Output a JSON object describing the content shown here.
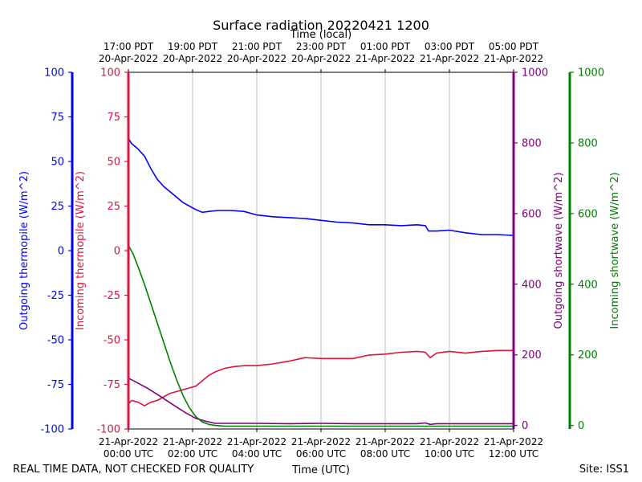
{
  "chart_data": {
    "type": "line",
    "title": "Surface radiation 20220421 1200",
    "top_xlabel": "Time (local)",
    "bottom_xlabel": "Time (UTC)",
    "footer_left": "REAL TIME DATA, NOT CHECKED FOR QUALITY",
    "footer_right": "Site: ISS1",
    "x_range_hours_utc": [
      0,
      12
    ],
    "grid": "vertical",
    "bottom_ticks": [
      {
        "h": 0,
        "l1": "21-Apr-2022",
        "l2": "00:00 UTC"
      },
      {
        "h": 2,
        "l1": "21-Apr-2022",
        "l2": "02:00 UTC"
      },
      {
        "h": 4,
        "l1": "21-Apr-2022",
        "l2": "04:00 UTC"
      },
      {
        "h": 6,
        "l1": "21-Apr-2022",
        "l2": "06:00 UTC"
      },
      {
        "h": 8,
        "l1": "21-Apr-2022",
        "l2": "08:00 UTC"
      },
      {
        "h": 10,
        "l1": "21-Apr-2022",
        "l2": "10:00 UTC"
      },
      {
        "h": 12,
        "l1": "21-Apr-2022",
        "l2": "12:00 UTC"
      }
    ],
    "top_ticks": [
      {
        "h": 0,
        "l1": "17:00 PDT",
        "l2": "20-Apr-2022"
      },
      {
        "h": 2,
        "l1": "19:00 PDT",
        "l2": "20-Apr-2022"
      },
      {
        "h": 4,
        "l1": "21:00 PDT",
        "l2": "20-Apr-2022"
      },
      {
        "h": 6,
        "l1": "23:00 PDT",
        "l2": "20-Apr-2022"
      },
      {
        "h": 8,
        "l1": "01:00 PDT",
        "l2": "21-Apr-2022"
      },
      {
        "h": 10,
        "l1": "03:00 PDT",
        "l2": "21-Apr-2022"
      },
      {
        "h": 12,
        "l1": "05:00 PDT",
        "l2": "21-Apr-2022"
      }
    ],
    "axes": [
      {
        "id": "out_thermo",
        "label": "Outgoing thermopile (W/m^2)",
        "color": "#0000ff",
        "ylim": [
          -100,
          100
        ],
        "ticks": [
          -100,
          -75,
          -50,
          -25,
          0,
          25,
          50,
          75,
          100
        ]
      },
      {
        "id": "in_thermo",
        "label": "Incoming thermopile (W/m^2)",
        "color": "#dc143c",
        "ylim": [
          -100,
          100
        ],
        "ticks": [
          -100,
          -75,
          -50,
          -25,
          0,
          25,
          50,
          75,
          100
        ]
      },
      {
        "id": "out_sw",
        "label": "Outgoing shortwave (W/m^2)",
        "color": "#800080",
        "ylim": [
          -10,
          1000
        ],
        "ticks": [
          0,
          200,
          400,
          600,
          800,
          1000
        ]
      },
      {
        "id": "in_sw",
        "label": "Incoming shortwave (W/m^2)",
        "color": "#008000",
        "ylim": [
          -10,
          1000
        ],
        "ticks": [
          0,
          200,
          400,
          600,
          800,
          1000
        ]
      }
    ],
    "series": [
      {
        "axis": "out_thermo",
        "color": "#0000ff",
        "x": [
          0,
          0.1,
          0.3,
          0.5,
          0.7,
          0.9,
          1.1,
          1.3,
          1.5,
          1.7,
          1.9,
          2.1,
          2.3,
          2.5,
          2.8,
          3.2,
          3.6,
          4.0,
          4.5,
          5.0,
          5.5,
          6.0,
          6.5,
          7.0,
          7.5,
          8.0,
          8.5,
          9.0,
          9.25,
          9.35,
          9.6,
          10.0,
          10.5,
          11.0,
          11.5,
          12.0
        ],
        "y": [
          63,
          60,
          57,
          53,
          46,
          40,
          36,
          33,
          30,
          27,
          25,
          23,
          21.5,
          22,
          22.5,
          22.5,
          22,
          20,
          19,
          18.5,
          18,
          17,
          16,
          15.5,
          14.5,
          14.5,
          14,
          14.5,
          14,
          11,
          11,
          11.5,
          10,
          9,
          9,
          8.5
        ]
      },
      {
        "axis": "in_thermo",
        "color": "#dc143c",
        "x": [
          0,
          0.1,
          0.3,
          0.5,
          0.7,
          0.9,
          1.1,
          1.3,
          1.5,
          1.7,
          1.9,
          2.1,
          2.3,
          2.5,
          2.7,
          3.0,
          3.3,
          3.6,
          4.0,
          4.5,
          5.0,
          5.5,
          6.0,
          6.5,
          7.0,
          7.5,
          8.0,
          8.5,
          9.0,
          9.25,
          9.4,
          9.6,
          10.0,
          10.5,
          11.0,
          11.5,
          12.0
        ],
        "y": [
          -86,
          -84,
          -85,
          -87,
          -85,
          -84,
          -82,
          -80,
          -79,
          -78,
          -77,
          -76,
          -73,
          -70,
          -68,
          -66,
          -65,
          -64.5,
          -64.5,
          -63.5,
          -62,
          -60,
          -60.5,
          -60.5,
          -60.5,
          -58.5,
          -58,
          -57,
          -56.5,
          -57,
          -60,
          -57.5,
          -56.5,
          -57.5,
          -56.5,
          -56,
          -56
        ]
      },
      {
        "axis": "out_sw",
        "color": "#800080",
        "x": [
          0,
          0.3,
          0.6,
          0.9,
          1.2,
          1.5,
          1.8,
          2.1,
          2.4,
          2.7,
          3.0,
          4.0,
          5.0,
          6.0,
          7.0,
          8.0,
          9.0,
          9.25,
          9.4,
          9.6,
          10.0,
          11.0,
          12.0
        ],
        "y": [
          134,
          120,
          105,
          88,
          70,
          52,
          35,
          20,
          12,
          6,
          6,
          6,
          5,
          6,
          5,
          5,
          5,
          7,
          3,
          5,
          5,
          5,
          5
        ]
      },
      {
        "axis": "in_sw",
        "color": "#008000",
        "x": [
          0,
          0.15,
          0.3,
          0.5,
          0.7,
          0.9,
          1.1,
          1.3,
          1.5,
          1.7,
          1.9,
          2.1,
          2.3,
          2.5,
          2.7,
          3.0,
          4.0,
          5.0,
          6.0,
          7.0,
          8.0,
          9.0,
          10.0,
          11.0,
          12.0
        ],
        "y": [
          510,
          485,
          450,
          400,
          345,
          290,
          235,
          180,
          130,
          85,
          50,
          25,
          10,
          3,
          0,
          -2,
          -2,
          -2,
          -2,
          -2,
          -2,
          -2,
          -2,
          -2,
          -2
        ]
      }
    ]
  }
}
